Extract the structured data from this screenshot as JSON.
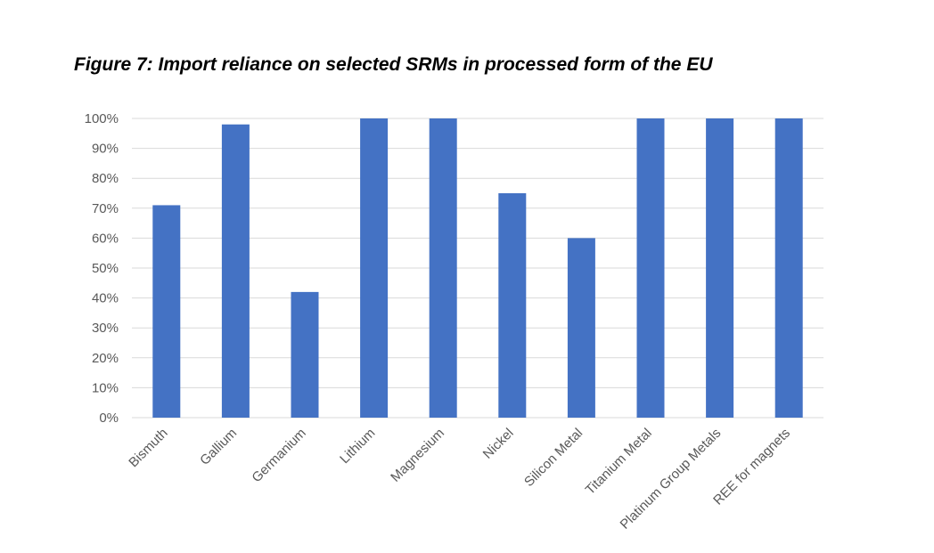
{
  "figure": {
    "title": "Figure 7: Import reliance on selected SRMs in processed form of the EU"
  },
  "chart_data": {
    "type": "bar",
    "title": "",
    "xlabel": "",
    "ylabel": "",
    "categories": [
      "Bismuth",
      "Gallium",
      "Germanium",
      "Lithium",
      "Magnesium",
      "Nickel",
      "Silicon Metal",
      "Titanium Metal",
      "Platinum Group Metals",
      "REE for magnets"
    ],
    "values": [
      71,
      98,
      42,
      100,
      100,
      75,
      60,
      100,
      100,
      100
    ],
    "y_ticks": [
      "0%",
      "10%",
      "20%",
      "30%",
      "40%",
      "50%",
      "60%",
      "70%",
      "80%",
      "90%",
      "100%"
    ],
    "ylim": [
      0,
      100
    ],
    "grid": true,
    "legend": "none",
    "bar_color": "#4472C4",
    "grid_color": "#D9D9D9",
    "label_color": "#595959"
  }
}
